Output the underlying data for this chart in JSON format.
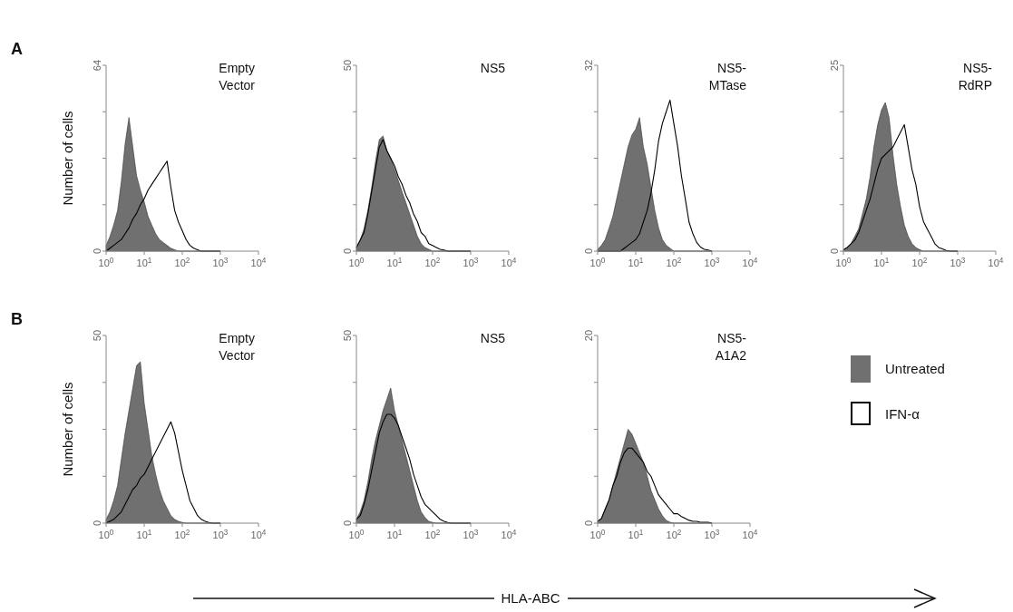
{
  "chart_data": [
    {
      "type": "area",
      "title": "Empty\nVector",
      "ylabel": "Number of cells",
      "annotations": [
        "A"
      ],
      "log": "x",
      "xlim": [
        1,
        10000
      ],
      "xticks": [
        {
          "value": 1,
          "label": "10$^{0}$"
        },
        {
          "value": 10,
          "label": "10$^{1}$"
        },
        {
          "value": 100,
          "label": "10$^{2}$"
        },
        {
          "value": 1000,
          "label": "10$^{3}$"
        },
        {
          "value": 10000,
          "label": "10$^{4}$"
        }
      ],
      "ylim": [
        0,
        64
      ],
      "yticks": [
        0,
        {
          "value": 16,
          "label": null
        },
        {
          "value": 32,
          "label": null
        },
        {
          "value": 48,
          "label": null
        },
        64
      ],
      "legend": false,
      "x": [
        1,
        1.26,
        1.58,
        2,
        2.51,
        3.16,
        3.98,
        5.01,
        6.31,
        7.94,
        10,
        12.6,
        15.8,
        20,
        25.1,
        31.6,
        39.8,
        50.1,
        63.1,
        79.4,
        100,
        126,
        158,
        200,
        251,
        316,
        398,
        501,
        631,
        794,
        1000
      ],
      "series": [
        {
          "type": "area",
          "color": "#707070",
          "values": [
            2,
            5,
            9,
            14,
            24,
            37,
            46,
            36,
            26,
            21,
            17,
            12,
            9,
            6,
            4,
            3,
            2,
            1,
            0.5,
            0,
            0,
            0,
            0,
            0,
            0,
            0,
            0,
            0,
            0,
            0,
            0
          ]
        },
        {
          "type": "line",
          "color": "#000000",
          "values": [
            0,
            1,
            2,
            3,
            4,
            6,
            8,
            11,
            13,
            16,
            18,
            21,
            23,
            25,
            27,
            29,
            31,
            22,
            14,
            10,
            7,
            4,
            2,
            1,
            0.5,
            0,
            0,
            0,
            0,
            0,
            0
          ]
        }
      ]
    },
    {
      "type": "area",
      "title": "NS5",
      "log": "x",
      "xlim": [
        1,
        10000
      ],
      "xticks": [
        {
          "value": 1,
          "label": "10$^{0}$"
        },
        {
          "value": 10,
          "label": "10$^{1}$"
        },
        {
          "value": 100,
          "label": "10$^{2}$"
        },
        {
          "value": 1000,
          "label": "10$^{3}$"
        },
        {
          "value": 10000,
          "label": "10$^{4}$"
        }
      ],
      "ylim": [
        0,
        50
      ],
      "yticks": [
        0,
        {
          "value": 12.5,
          "label": null
        },
        {
          "value": 25,
          "label": null
        },
        {
          "value": 37.5,
          "label": null
        },
        50
      ],
      "legend": false,
      "x": [
        1,
        1.26,
        1.58,
        2,
        2.51,
        3.16,
        3.98,
        5.01,
        6.31,
        7.94,
        10,
        12.6,
        15.8,
        20,
        25.1,
        31.6,
        39.8,
        50.1,
        63.1,
        79.4,
        100,
        126,
        158,
        200,
        251,
        316,
        398,
        501,
        631,
        794,
        1000
      ],
      "series": [
        {
          "type": "area",
          "color": "#707070",
          "values": [
            1,
            3,
            6,
            11,
            17,
            24,
            30,
            31,
            27,
            25,
            22,
            19,
            16,
            13,
            10,
            7,
            4,
            2,
            1,
            0.5,
            0,
            0,
            0,
            0,
            0,
            0,
            0,
            0,
            0,
            0,
            0
          ]
        },
        {
          "type": "line",
          "color": "#000000",
          "values": [
            1,
            3,
            5,
            10,
            16,
            22,
            28,
            30,
            27,
            25,
            23,
            20,
            18,
            15,
            13,
            10,
            8,
            5,
            4,
            2,
            1.5,
            1,
            0.5,
            0.3,
            0,
            0,
            0,
            0,
            0,
            0,
            0
          ]
        }
      ]
    },
    {
      "type": "area",
      "title": "NS5-\nMTase",
      "log": "x",
      "xlim": [
        1,
        10000
      ],
      "xticks": [
        {
          "value": 1,
          "label": "10$^{0}$"
        },
        {
          "value": 10,
          "label": "10$^{1}$"
        },
        {
          "value": 100,
          "label": "10$^{2}$"
        },
        {
          "value": 1000,
          "label": "10$^{3}$"
        },
        {
          "value": 10000,
          "label": "10$^{4}$"
        }
      ],
      "ylim": [
        0,
        32
      ],
      "yticks": [
        0,
        {
          "value": 8,
          "label": null
        },
        {
          "value": 16,
          "label": null
        },
        {
          "value": 24,
          "label": null
        },
        32
      ],
      "legend": false,
      "x": [
        1,
        1.26,
        1.58,
        2,
        2.51,
        3.16,
        3.98,
        5.01,
        6.31,
        7.94,
        10,
        12.6,
        15.8,
        20,
        25.1,
        31.6,
        39.8,
        50.1,
        63.1,
        79.4,
        100,
        126,
        158,
        200,
        251,
        316,
        398,
        501,
        631,
        794,
        1000
      ],
      "series": [
        {
          "type": "area",
          "color": "#707070",
          "values": [
            0.3,
            1,
            2,
            4,
            6,
            9,
            12,
            15,
            18,
            20,
            21,
            23,
            18,
            15,
            11,
            7,
            4,
            2,
            1,
            0.5,
            0,
            0,
            0,
            0,
            0,
            0,
            0,
            0,
            0,
            0,
            0
          ]
        },
        {
          "type": "line",
          "color": "#000000",
          "values": [
            0,
            0,
            0,
            0,
            0,
            0,
            0,
            0.5,
            1,
            1.5,
            2,
            3,
            5,
            7,
            10,
            14,
            19,
            22,
            24,
            26,
            22,
            18,
            13,
            9,
            5,
            3,
            1.5,
            0.7,
            0.3,
            0.2,
            0
          ]
        }
      ]
    },
    {
      "type": "area",
      "title": "NS5-\nRdRP",
      "log": "x",
      "xlim": [
        1,
        10000
      ],
      "xticks": [
        {
          "value": 1,
          "label": "10$^{0}$"
        },
        {
          "value": 10,
          "label": "10$^{1}$"
        },
        {
          "value": 100,
          "label": "10$^{2}$"
        },
        {
          "value": 1000,
          "label": "10$^{3}$"
        },
        {
          "value": 10000,
          "label": "10$^{4}$"
        }
      ],
      "ylim": [
        0,
        25
      ],
      "yticks": [
        0,
        {
          "value": 6.25,
          "label": null
        },
        {
          "value": 12.5,
          "label": null
        },
        {
          "value": 18.75,
          "label": null
        },
        25
      ],
      "legend": false,
      "x": [
        1,
        1.26,
        1.58,
        2,
        2.51,
        3.16,
        3.98,
        5.01,
        6.31,
        7.94,
        10,
        12.6,
        15.8,
        20,
        25.1,
        31.6,
        39.8,
        50.1,
        63.1,
        79.4,
        100,
        126,
        158,
        200,
        251,
        316,
        398,
        501,
        631,
        794,
        1000
      ],
      "series": [
        {
          "type": "area",
          "color": "#707070",
          "values": [
            0.2,
            0.5,
            1,
            2,
            3,
            5,
            7,
            10,
            14,
            17,
            19,
            20,
            18,
            13,
            9,
            6,
            3.5,
            2,
            1,
            0.5,
            0.2,
            0,
            0,
            0,
            0,
            0,
            0,
            0,
            0,
            0,
            0
          ]
        },
        {
          "type": "line",
          "color": "#000000",
          "values": [
            0.2,
            0.5,
            1,
            1.5,
            2.5,
            4,
            5.5,
            7,
            9,
            11,
            12.5,
            13,
            13.5,
            14,
            15,
            16,
            17,
            14,
            11,
            9,
            6,
            4,
            3,
            2,
            1,
            0.5,
            0.3,
            0.1,
            0,
            0,
            0
          ]
        }
      ]
    },
    {
      "type": "area",
      "title": "Empty\nVector",
      "ylabel": "Number of cells",
      "annotations": [
        "B"
      ],
      "log": "x",
      "xlim": [
        1,
        10000
      ],
      "xticks": [
        {
          "value": 1,
          "label": "10$^{0}$"
        },
        {
          "value": 10,
          "label": "10$^{1}$"
        },
        {
          "value": 100,
          "label": "10$^{2}$"
        },
        {
          "value": 1000,
          "label": "10$^{3}$"
        },
        {
          "value": 10000,
          "label": "10$^{4}$"
        }
      ],
      "ylim": [
        0,
        50
      ],
      "yticks": [
        0,
        {
          "value": 12.5,
          "label": null
        },
        {
          "value": 25,
          "label": null
        },
        {
          "value": 37.5,
          "label": null
        },
        50
      ],
      "legend": false,
      "x": [
        1,
        1.26,
        1.58,
        2,
        2.51,
        3.16,
        3.98,
        5.01,
        6.31,
        7.94,
        10,
        12.6,
        15.8,
        20,
        25.1,
        31.6,
        39.8,
        50.1,
        63.1,
        79.4,
        100,
        126,
        158,
        200,
        251,
        316,
        398,
        501,
        631,
        794,
        1000
      ],
      "series": [
        {
          "type": "area",
          "color": "#707070",
          "values": [
            1,
            3,
            6,
            10,
            17,
            24,
            30,
            36,
            42,
            43,
            32,
            25,
            18,
            13,
            9,
            6,
            4,
            2,
            1,
            0.5,
            0.2,
            0,
            0,
            0,
            0,
            0,
            0,
            0,
            0,
            0,
            0
          ]
        },
        {
          "type": "line",
          "color": "#000000",
          "values": [
            0,
            0.5,
            1,
            2,
            3,
            5,
            7,
            9,
            10,
            12,
            13,
            15,
            17,
            19,
            21,
            23,
            25,
            27,
            24,
            19,
            14,
            10,
            6,
            4,
            2,
            1,
            0.5,
            0.2,
            0,
            0,
            0
          ]
        }
      ]
    },
    {
      "type": "area",
      "title": "NS5",
      "log": "x",
      "xlim": [
        1,
        10000
      ],
      "xticks": [
        {
          "value": 1,
          "label": "10$^{0}$"
        },
        {
          "value": 10,
          "label": "10$^{1}$"
        },
        {
          "value": 100,
          "label": "10$^{2}$"
        },
        {
          "value": 1000,
          "label": "10$^{3}$"
        },
        {
          "value": 10000,
          "label": "10$^{4}$"
        }
      ],
      "ylim": [
        0,
        50
      ],
      "yticks": [
        0,
        {
          "value": 12.5,
          "label": null
        },
        {
          "value": 25,
          "label": null
        },
        {
          "value": 37.5,
          "label": null
        },
        50
      ],
      "legend": false,
      "x": [
        1,
        1.26,
        1.58,
        2,
        2.51,
        3.16,
        3.98,
        5.01,
        6.31,
        7.94,
        10,
        12.6,
        15.8,
        20,
        25.1,
        31.6,
        39.8,
        50.1,
        63.1,
        79.4,
        100,
        126,
        158,
        200,
        251,
        316,
        398,
        501,
        631,
        794,
        1000
      ],
      "series": [
        {
          "type": "area",
          "color": "#707070",
          "values": [
            1,
            3,
            6,
            11,
            17,
            22,
            26,
            30,
            33,
            36,
            30,
            26,
            22,
            18,
            14,
            10,
            6,
            3,
            1.5,
            0.5,
            0.2,
            0,
            0,
            0,
            0,
            0,
            0,
            0,
            0,
            0,
            0
          ]
        },
        {
          "type": "line",
          "color": "#000000",
          "values": [
            1,
            2,
            5,
            9,
            14,
            19,
            24,
            27,
            29,
            29,
            28,
            26,
            23,
            20,
            17,
            13,
            10,
            7,
            5,
            4,
            3,
            2,
            1,
            0.5,
            0.2,
            0,
            0,
            0,
            0,
            0,
            0
          ]
        }
      ]
    },
    {
      "type": "area",
      "title": "NS5-\nA1A2",
      "xlabel": "HLA-ABC",
      "log": "x",
      "xlim": [
        1,
        10000
      ],
      "xticks": [
        {
          "value": 1,
          "label": "10$^{0}$"
        },
        {
          "value": 10,
          "label": "10$^{1}$"
        },
        {
          "value": 100,
          "label": "10$^{2}$"
        },
        {
          "value": 1000,
          "label": "10$^{3}$"
        },
        {
          "value": 10000,
          "label": "10$^{4}$"
        }
      ],
      "ylim": [
        0,
        20
      ],
      "yticks": [
        0,
        {
          "value": 5,
          "label": null
        },
        {
          "value": 10,
          "label": null
        },
        {
          "value": 15,
          "label": null
        },
        20
      ],
      "legend": "right",
      "x": [
        1,
        1.26,
        1.58,
        2,
        2.51,
        3.16,
        3.98,
        5.01,
        6.31,
        7.94,
        10,
        12.6,
        15.8,
        20,
        25.1,
        31.6,
        39.8,
        50.1,
        63.1,
        79.4,
        100,
        126,
        158,
        200,
        251,
        316,
        398,
        501,
        631,
        794,
        1000
      ],
      "series": [
        {
          "type": "area",
          "name": "Untreated",
          "color": "#707070",
          "values": [
            0.2,
            0.5,
            1.5,
            2.5,
            4,
            5.5,
            7,
            8.5,
            10,
            9.5,
            8.5,
            7.5,
            6.5,
            5,
            3.5,
            2.5,
            1.5,
            0.8,
            0.3,
            0.1,
            0,
            0,
            0,
            0,
            0,
            0,
            0,
            0,
            0,
            0,
            0
          ]
        },
        {
          "type": "line",
          "name": "IFN-α",
          "color": "#000000",
          "values": [
            0.2,
            0.5,
            1.5,
            2.5,
            4,
            5,
            6.5,
            7.5,
            8,
            8,
            7.5,
            7,
            6.5,
            5.5,
            5,
            4,
            3,
            2.5,
            2,
            1.5,
            1,
            1,
            0.7,
            0.5,
            0.3,
            0.2,
            0.2,
            0.1,
            0.1,
            0.1,
            0
          ]
        }
      ]
    }
  ]
}
